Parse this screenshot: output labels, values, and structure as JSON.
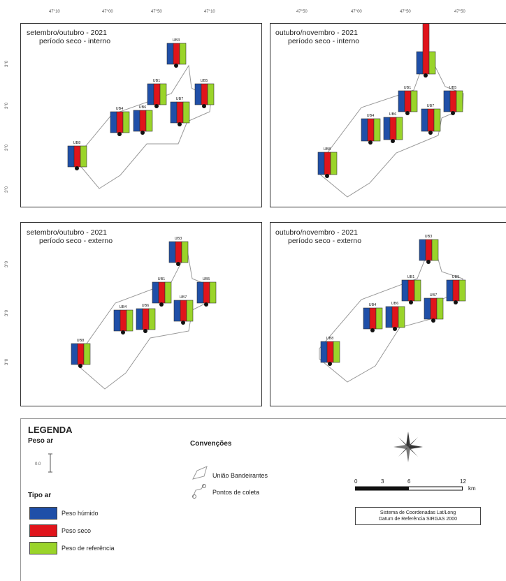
{
  "top_ticks_left": [
    "47°10",
    "47°00",
    "47°50",
    "47°10"
  ],
  "top_ticks_right": [
    "47°50",
    "47°00",
    "47°50",
    "47°50"
  ],
  "y_ticks_top": [
    "3°0",
    "3°0",
    "3°0",
    "3°0"
  ],
  "y_ticks_bottom": [
    "3°0",
    "3°0",
    "3°0"
  ],
  "panels": [
    {
      "title_line1": "setembro/outubro - 2021",
      "title_line2": "período seco - interno"
    },
    {
      "title_line1": "outubro/novembro - 2021",
      "title_line2": "período seco - interno"
    },
    {
      "title_line1": "setembro/outubro - 2021",
      "title_line2": "período seco - externo"
    },
    {
      "title_line1": "outubro/novembro - 2021",
      "title_line2": "período seco - externo"
    }
  ],
  "station_labels": [
    "UB3",
    "UB2",
    "UB1",
    "UB5",
    "UB4",
    "UB6",
    "UB7",
    "UB8"
  ],
  "legend": {
    "title": "LEGENDA",
    "peso_ar_title": "Peso ar",
    "tipo_ar_title": "Tipo ar",
    "items": [
      {
        "label": "Peso húmido",
        "color": "#1f4fa8"
      },
      {
        "label": "Peso seco",
        "color": "#e0141b"
      },
      {
        "label": "Peso de referência",
        "color": "#9ad42a"
      }
    ],
    "convencoes_title": "Convenções",
    "convencoes": [
      "União Bandeirantes",
      "Pontos de coleta"
    ],
    "scale_ticks": [
      "0",
      "3",
      "6",
      "12"
    ],
    "scale_unit": "km",
    "srs_line1": "Sistema de Coordenadas Lat/Long",
    "srs_line2": "Datum de Referência SIRGAS 2000"
  }
}
